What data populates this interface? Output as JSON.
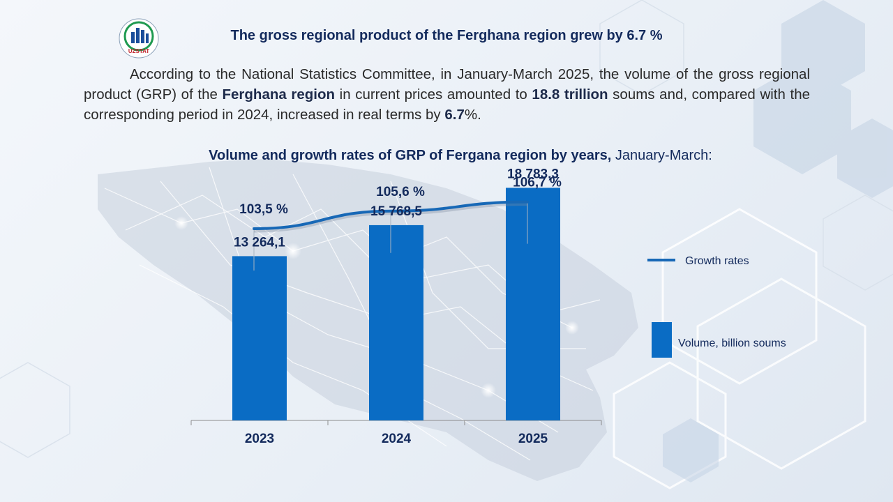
{
  "header": {
    "logo_text": "UZSTAT",
    "title": "The gross regional product of the Ferghana region grew by 6.7 %"
  },
  "paragraph": {
    "part1": "According to the National Statistics Committee, in January-March 2025, the volume of the gross regional product (GRP) of the ",
    "region": "Ferghana region",
    "part2": " in current prices amounted to ",
    "amount": "18.8 trillion",
    "part3": " soums and, compared with the corresponding period in 2024, increased in real terms by ",
    "growth": "6.7",
    "part4": "%."
  },
  "subtitle": {
    "bold": "Volume and growth rates of GRP of Fergana region by years,",
    "normal": " January-March:"
  },
  "colors": {
    "bar": "#0a6cc4",
    "line": "#1768b6",
    "text": "#132a5c"
  },
  "chart_data": {
    "type": "bar",
    "title": "Volume and growth rates of GRP of Fergana region by years, January-March:",
    "categories": [
      "2023",
      "2024",
      "2025"
    ],
    "series": [
      {
        "name": "Volume, billion soums",
        "type": "bar",
        "values": [
          13264.1,
          15768.5,
          18783.3
        ],
        "labels": [
          "13 264,1",
          "15 768,5",
          "18 783,3"
        ]
      },
      {
        "name": "Growth rates",
        "type": "line",
        "values": [
          103.5,
          105.6,
          106.7
        ],
        "labels": [
          "103,5 %",
          "105,6 %",
          "106,7 %"
        ]
      }
    ],
    "legend": [
      {
        "name": "Growth rates",
        "marker": "line"
      },
      {
        "name": "Volume, billion soums",
        "marker": "bar"
      }
    ],
    "legend_position": "right",
    "grid": false,
    "ylim": [
      0,
      21000
    ],
    "line_ylim": [
      95,
      110
    ]
  }
}
